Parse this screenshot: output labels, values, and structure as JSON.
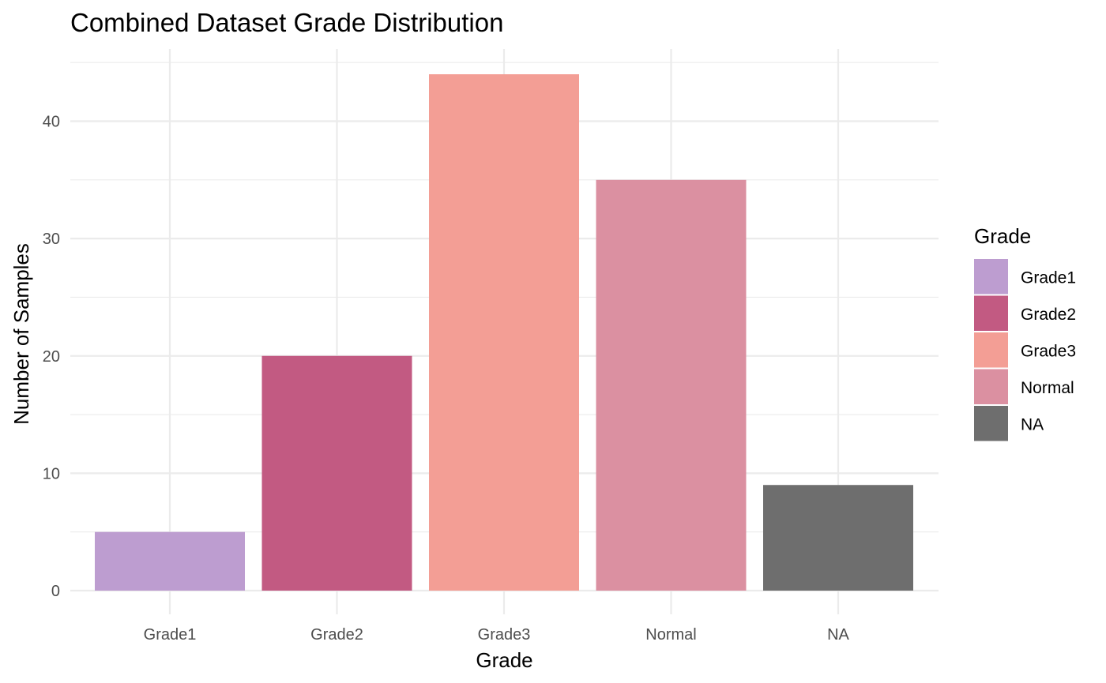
{
  "chart_data": {
    "type": "bar",
    "title": "Combined Dataset Grade Distribution",
    "xlabel": "Grade",
    "ylabel": "Number of Samples",
    "categories": [
      "Grade1",
      "Grade2",
      "Grade3",
      "Normal",
      "NA"
    ],
    "values": [
      5,
      20,
      44,
      35,
      9
    ],
    "colors": [
      "#bd9dd0",
      "#c25a82",
      "#f39e95",
      "#db90a1",
      "#6e6e6e"
    ],
    "ylim": [
      0,
      45
    ],
    "yticks": [
      0,
      10,
      20,
      30,
      40
    ],
    "grid": true,
    "legend": {
      "title": "Grade",
      "position": "right",
      "entries": [
        "Grade1",
        "Grade2",
        "Grade3",
        "Normal",
        "NA"
      ]
    }
  }
}
